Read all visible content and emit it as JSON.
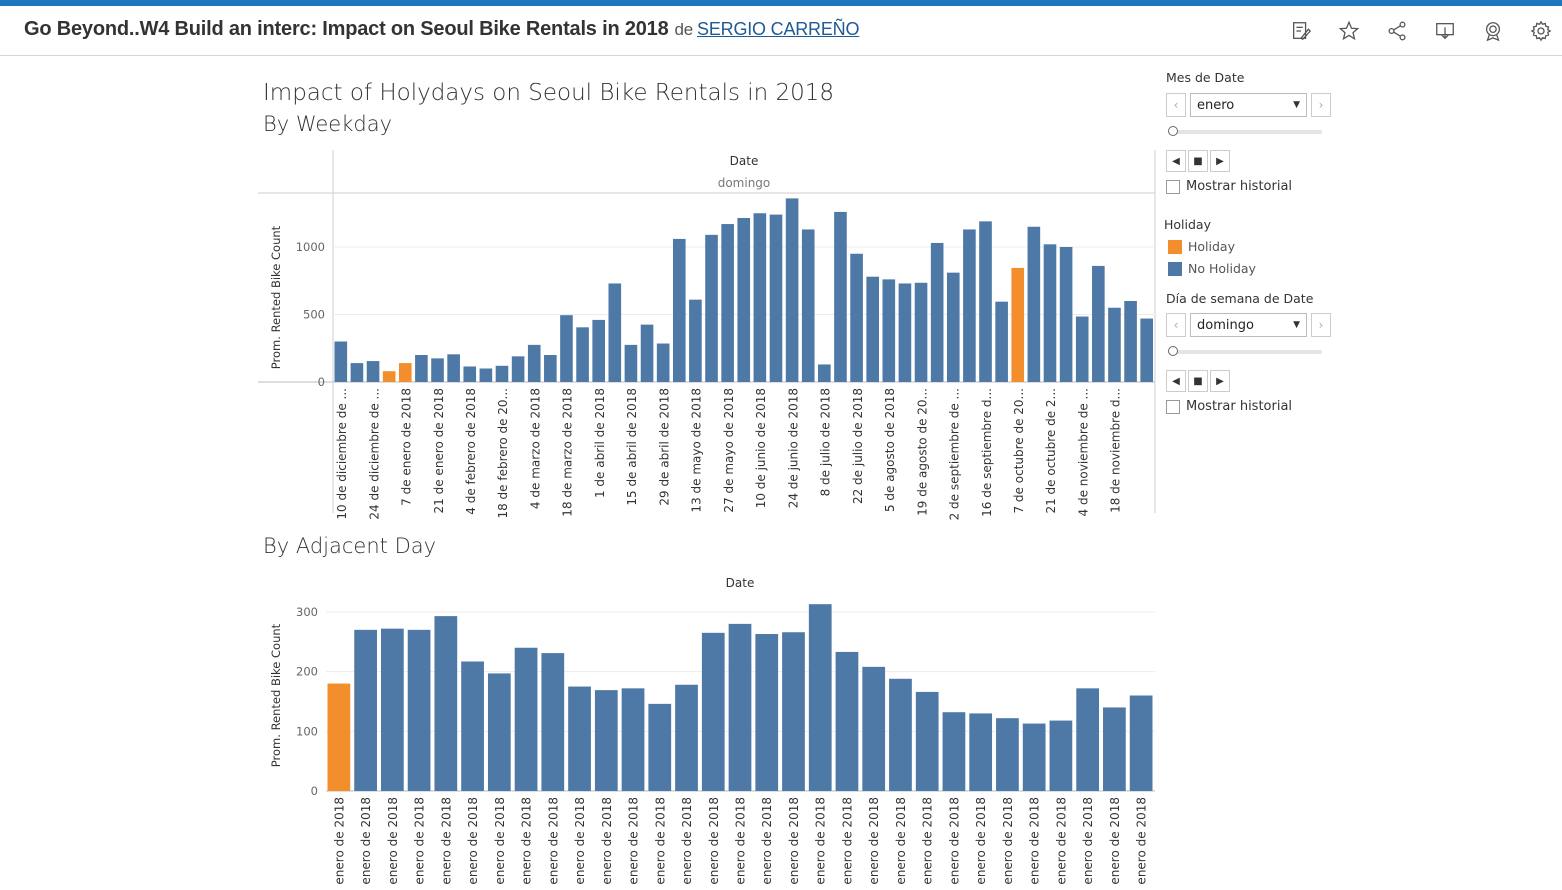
{
  "header": {
    "title": "Go Beyond..W4 Build an interc: Impact on Seoul Bike Rentals in 2018",
    "by": "de",
    "author": "SERGIO CARREÑO",
    "icons": [
      "edit-icon",
      "star-icon",
      "share-icon",
      "download-icon",
      "badge-icon",
      "gear-icon"
    ]
  },
  "sheet": {
    "title_line1": "Impact of Holydays on Seoul Bike Rentals in 2018",
    "title_line2": "By Weekday",
    "title_adjacent": "By Adjacent Day"
  },
  "colors": {
    "holiday": "#f28e2b",
    "no_holiday": "#4e79a7",
    "accent": "#1f77c0"
  },
  "filters": {
    "month": {
      "title": "Mes de Date",
      "value": "enero",
      "show_history": "Mostrar historial"
    },
    "legend": {
      "title": "Holiday",
      "items": [
        "Holiday",
        "No Holiday"
      ]
    },
    "weekday": {
      "title": "Día de semana de Date",
      "value": "domingo",
      "show_history": "Mostrar historial"
    }
  },
  "chart_data": [
    {
      "type": "bar",
      "title": "Date",
      "subtitle": "domingo",
      "ylabel": "Prom. Rented Bike Count",
      "ylim": [
        0,
        1400
      ],
      "yticks": [
        0,
        500,
        1000
      ],
      "x_labels": [
        "10 de diciembre de ...",
        "24 de diciembre de ...",
        "7 de enero de 2018",
        "21 de enero de 2018",
        "4 de febrero de 2018",
        "18 de febrero de 20...",
        "4 de marzo de 2018",
        "18 de marzo de 2018",
        "1 de abril de 2018",
        "15 de abril de 2018",
        "29 de abril de 2018",
        "13 de mayo de 2018",
        "27 de mayo de 2018",
        "10 de junio de 2018",
        "24 de junio de 2018",
        "8 de julio de 2018",
        "22 de julio de 2018",
        "5 de agosto de 2018",
        "19 de agosto de 20...",
        "2 de septiembre de ...",
        "16 de septiembre d...",
        "7 de octubre de 20...",
        "21 de octubre de 2...",
        "4 de noviembre de ...",
        "18 de noviembre d..."
      ],
      "values": [
        300,
        140,
        155,
        80,
        140,
        200,
        175,
        205,
        115,
        100,
        120,
        190,
        275,
        200,
        495,
        405,
        460,
        730,
        275,
        425,
        285,
        1060,
        610,
        1090,
        1170,
        1215,
        1250,
        1240,
        1360,
        1130,
        130,
        1260,
        950,
        780,
        760,
        730,
        735,
        1030,
        810,
        1130,
        1190,
        595,
        845,
        1150,
        1020,
        1000,
        485,
        860,
        550,
        600,
        470
      ],
      "holiday_flags": [
        0,
        0,
        0,
        1,
        1,
        0,
        0,
        0,
        0,
        0,
        0,
        0,
        0,
        0,
        0,
        0,
        0,
        0,
        0,
        0,
        0,
        0,
        0,
        0,
        0,
        0,
        0,
        0,
        0,
        0,
        0,
        0,
        0,
        0,
        0,
        0,
        0,
        0,
        0,
        0,
        0,
        0,
        1,
        0,
        0,
        0,
        0,
        0,
        0,
        0,
        0
      ]
    },
    {
      "type": "bar",
      "title": "Date",
      "ylabel": "Prom. Rented Bike Count",
      "ylim": [
        0,
        320
      ],
      "yticks": [
        0,
        100,
        200,
        300
      ],
      "x_label": "enero de 2018",
      "values": [
        180,
        270,
        272,
        270,
        293,
        217,
        197,
        240,
        231,
        175,
        169,
        172,
        146,
        178,
        265,
        280,
        263,
        266,
        313,
        233,
        208,
        188,
        166,
        132,
        130,
        122,
        113,
        118,
        172,
        140,
        160
      ],
      "holiday_flags": [
        1,
        0,
        0,
        0,
        0,
        0,
        0,
        0,
        0,
        0,
        0,
        0,
        0,
        0,
        0,
        0,
        0,
        0,
        0,
        0,
        0,
        0,
        0,
        0,
        0,
        0,
        0,
        0,
        0,
        0,
        0
      ]
    }
  ]
}
